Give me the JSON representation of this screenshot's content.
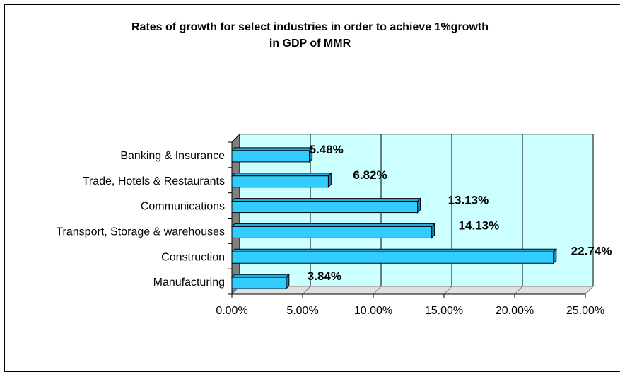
{
  "chart_data": {
    "type": "bar",
    "orientation": "horizontal",
    "title_lines": [
      "Rates of growth for select industries in order to achieve 1%growth",
      "in GDP of MMR"
    ],
    "categories": [
      "Banking & Insurance",
      "Trade, Hotels & Restaurants",
      "Communications",
      "Transport, Storage & warehouses",
      "Construction",
      "Manufacturing"
    ],
    "values": [
      5.48,
      6.82,
      13.13,
      14.13,
      22.74,
      3.84
    ],
    "data_labels": [
      "5.48%",
      "6.82%",
      "13.13%",
      "14.13%",
      "22.74%",
      "3.84%"
    ],
    "xlim": [
      0,
      25
    ],
    "xticks": [
      0,
      5,
      10,
      15,
      20,
      25
    ],
    "xtick_labels": [
      "0.00%",
      "5.00%",
      "10.00%",
      "15.00%",
      "20.00%",
      "25.00%"
    ],
    "grid": true,
    "colors": {
      "bar": "#33ccff",
      "bar_top": "#22aadd",
      "bar_side": "#1188bb",
      "plot_bg": "#ccffff",
      "floor": "#808080"
    }
  }
}
